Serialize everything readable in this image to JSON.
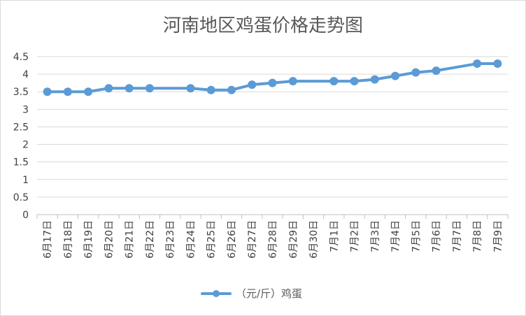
{
  "chart_data": {
    "type": "line",
    "title": "河南地区鸡蛋价格走势图",
    "xlabel": "",
    "ylabel": "",
    "ylim": [
      0,
      4.5
    ],
    "y_ticks": [
      "0",
      "0.5",
      "1",
      "1.5",
      "2",
      "2.5",
      "3",
      "3.5",
      "4",
      "4.5"
    ],
    "categories": [
      "6月17日",
      "6月18日",
      "6月19日",
      "6月20日",
      "6月21日",
      "6月22日",
      "6月23日",
      "6月24日",
      "6月25日",
      "6月26日",
      "6月27日",
      "6月28日",
      "6月29日",
      "6月30日",
      "7月1日",
      "7月2日",
      "7月3日",
      "7月4日",
      "7月5日",
      "7月6日",
      "7月7日",
      "7月8日",
      "7月9日"
    ],
    "series": [
      {
        "name": "（元/斤）鸡蛋",
        "values": [
          3.5,
          3.5,
          3.5,
          3.6,
          3.6,
          3.6,
          null,
          3.6,
          3.55,
          3.55,
          3.7,
          3.75,
          3.8,
          null,
          3.8,
          3.8,
          3.85,
          3.95,
          4.05,
          4.1,
          null,
          4.3,
          4.3
        ]
      }
    ],
    "grid": true,
    "legend_position": "bottom",
    "colors": {
      "series": "#5b9bd5",
      "grid": "#d9d9d9",
      "axis": "#bfbfbf",
      "text": "#595959"
    }
  }
}
